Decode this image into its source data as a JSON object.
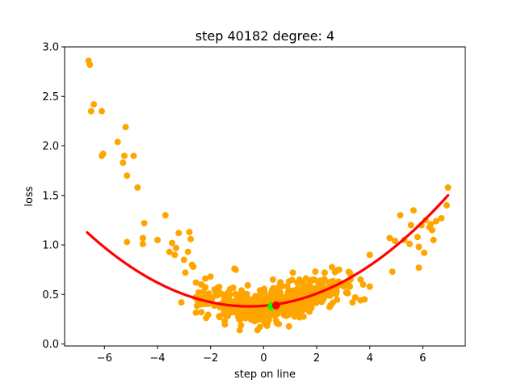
{
  "chart_data": {
    "type": "scatter",
    "title": "step 40182   degree: 4",
    "xlabel": "step on line",
    "ylabel": "loss",
    "xlim": [
      -7.5,
      7.6
    ],
    "ylim": [
      -0.02,
      3.0
    ],
    "xticks": [
      -6,
      -4,
      -2,
      0,
      2,
      4,
      6
    ],
    "yticks": [
      0.0,
      0.5,
      1.0,
      1.5,
      2.0,
      2.5,
      3.0
    ],
    "grid": false,
    "colors": {
      "points": "#ffa500",
      "fit": "#ff0000",
      "current": "#00ff00",
      "minimum": "#ff0000"
    },
    "fit_curve": {
      "degree": 4,
      "x_range": [
        -6.65,
        6.95
      ],
      "coefficients_ascending": [
        0.3856,
        0.0216,
        0.02,
        0.0,
        0.0
      ]
    },
    "current_point": {
      "x": 0.3,
      "y": 0.38
    },
    "minimum_point": {
      "x": 0.47,
      "y": 0.39
    },
    "scatter_seed": 7,
    "scatter_n_dense": 520,
    "points": [
      [
        -6.6,
        2.86
      ],
      [
        -6.55,
        2.82
      ],
      [
        -6.5,
        2.35
      ],
      [
        -6.4,
        2.42
      ],
      [
        -6.1,
        2.35
      ],
      [
        -6.05,
        1.92
      ],
      [
        -6.1,
        1.9
      ],
      [
        -5.5,
        2.04
      ],
      [
        -5.3,
        1.83
      ],
      [
        -5.25,
        1.9
      ],
      [
        -5.2,
        2.19
      ],
      [
        -5.15,
        1.7
      ],
      [
        -4.9,
        1.9
      ],
      [
        -4.75,
        1.58
      ],
      [
        -5.15,
        1.03
      ],
      [
        -4.5,
        1.22
      ],
      [
        -4.55,
        1.07
      ],
      [
        -4.55,
        1.01
      ],
      [
        -4.0,
        1.05
      ],
      [
        -3.7,
        1.3
      ],
      [
        -3.55,
        0.93
      ],
      [
        -3.45,
        1.02
      ],
      [
        -3.35,
        0.9
      ],
      [
        -3.3,
        0.97
      ],
      [
        -3.2,
        1.12
      ],
      [
        -3.0,
        0.85
      ],
      [
        -2.8,
        1.13
      ],
      [
        -2.75,
        1.06
      ],
      [
        -2.85,
        0.93
      ],
      [
        -2.7,
        0.8
      ],
      [
        -2.65,
        0.78
      ],
      [
        -3.1,
        0.42
      ],
      [
        -2.2,
        0.66
      ],
      [
        -2.0,
        0.68
      ],
      [
        -1.1,
        0.76
      ],
      [
        -1.05,
        0.75
      ],
      [
        -0.9,
        0.14
      ],
      [
        -0.85,
        0.19
      ],
      [
        0.35,
        0.65
      ],
      [
        1.1,
        0.72
      ],
      [
        1.35,
        0.65
      ],
      [
        1.95,
        0.73
      ],
      [
        2.3,
        0.72
      ],
      [
        2.45,
        0.62
      ],
      [
        2.75,
        0.54
      ],
      [
        3.05,
        0.6
      ],
      [
        3.25,
        0.58
      ],
      [
        3.45,
        0.47
      ],
      [
        3.35,
        0.42
      ],
      [
        3.65,
        0.65
      ],
      [
        3.75,
        0.6
      ],
      [
        3.65,
        0.44
      ],
      [
        3.8,
        0.45
      ],
      [
        4.0,
        0.58
      ],
      [
        4.0,
        0.9
      ],
      [
        4.75,
        1.07
      ],
      [
        4.85,
        0.73
      ],
      [
        4.95,
        1.04
      ],
      [
        5.3,
        1.05
      ],
      [
        5.15,
        1.3
      ],
      [
        5.5,
        1.01
      ],
      [
        5.55,
        1.2
      ],
      [
        5.65,
        1.35
      ],
      [
        5.8,
        1.08
      ],
      [
        5.85,
        0.77
      ],
      [
        5.95,
        1.2
      ],
      [
        6.1,
        1.25
      ],
      [
        6.25,
        1.18
      ],
      [
        6.3,
        1.21
      ],
      [
        6.35,
        1.15
      ],
      [
        6.4,
        1.05
      ],
      [
        6.5,
        1.24
      ],
      [
        6.7,
        1.27
      ],
      [
        6.9,
        1.4
      ],
      [
        6.95,
        1.58
      ],
      [
        6.05,
        0.92
      ],
      [
        5.85,
        0.98
      ],
      [
        -2.95,
        0.72
      ],
      [
        -2.55,
        0.62
      ],
      [
        -2.35,
        0.6
      ],
      [
        -1.85,
        0.55
      ],
      [
        2.85,
        0.6
      ],
      [
        3.15,
        0.52
      ],
      [
        2.55,
        0.55
      ],
      [
        -1.55,
        0.5
      ],
      [
        2.1,
        0.5
      ],
      [
        -2.45,
        0.52
      ]
    ]
  }
}
